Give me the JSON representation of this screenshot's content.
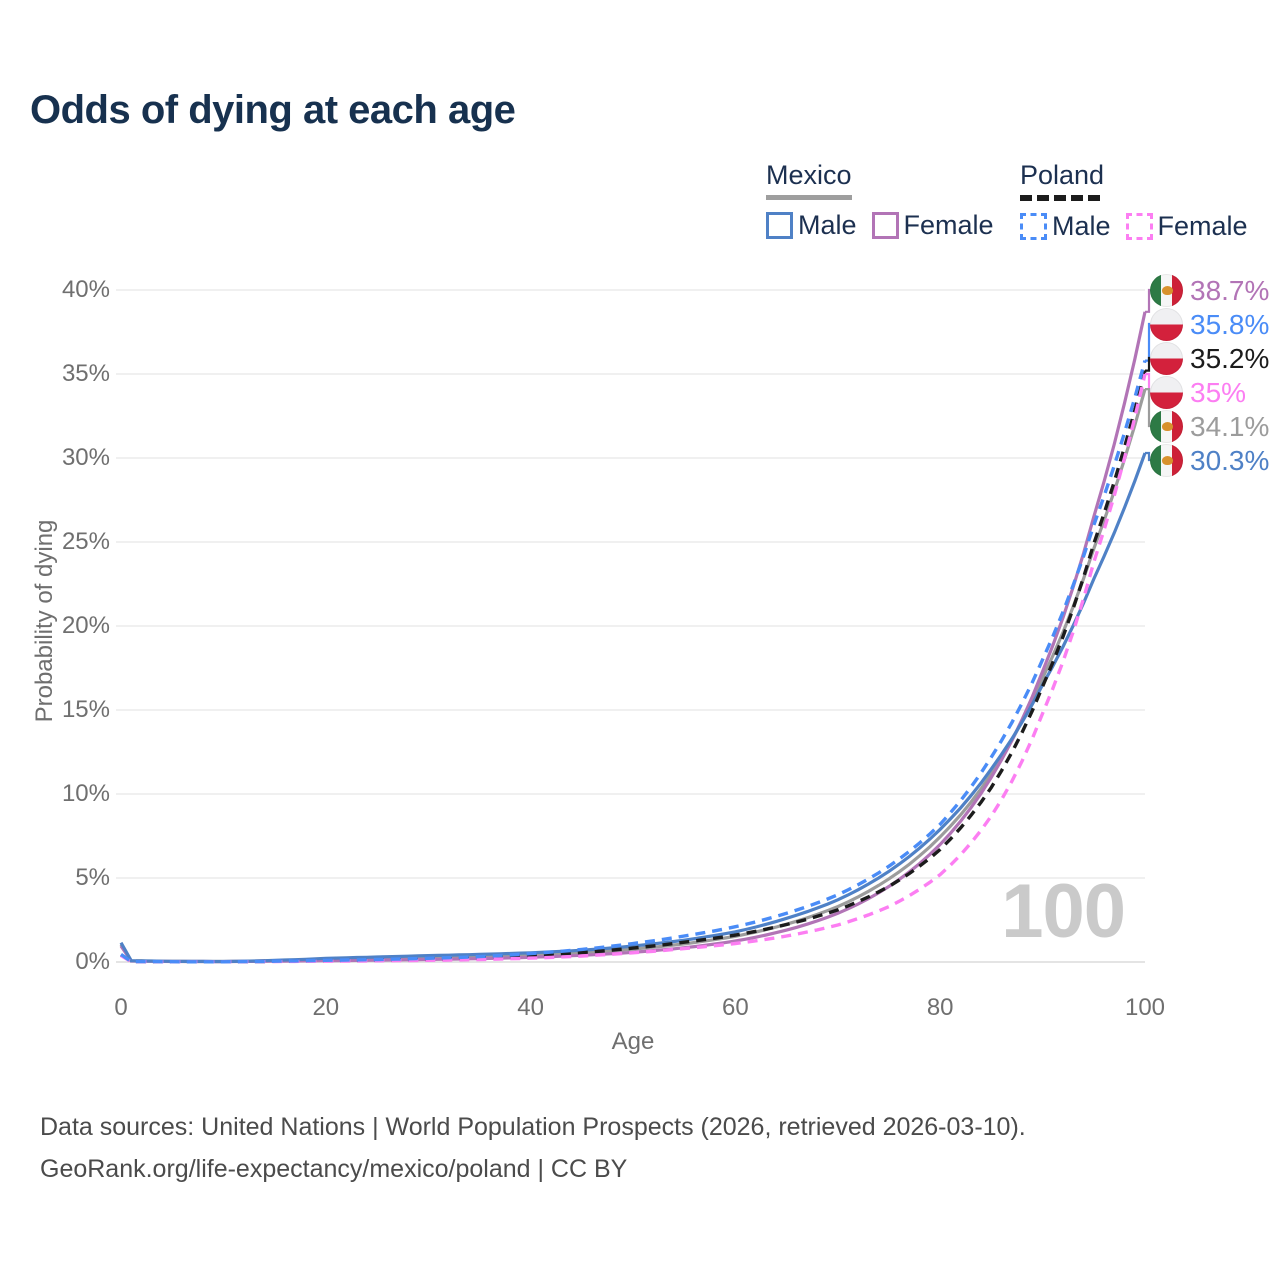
{
  "title": "Odds of dying at each age",
  "watermark_age": "100",
  "legend": {
    "groups": [
      {
        "title": "Mexico",
        "line_style": "solid",
        "underline_color": "#9e9e9e",
        "items": [
          {
            "label": "Male",
            "color": "#4f81c6"
          },
          {
            "label": "Female",
            "color": "#b274b6"
          }
        ]
      },
      {
        "title": "Poland",
        "line_style": "dashed",
        "underline_color": "#1c1c1c",
        "items": [
          {
            "label": "Male",
            "color": "#4a8cf7"
          },
          {
            "label": "Female",
            "color": "#fc7ef2"
          }
        ]
      }
    ]
  },
  "footer": {
    "line1": "Data sources: United Nations | World Population Prospects (2026, retrieved 2026-03-10).",
    "line2": "GeoRank.org/life-expectancy/mexico/poland | CC BY"
  },
  "chart_data": {
    "type": "line",
    "title": "Odds of dying at each age",
    "xlabel": "Age",
    "ylabel": "Probability of dying",
    "unit": "%",
    "xlim": [
      0,
      100
    ],
    "ylim": [
      0,
      40
    ],
    "grid": "horizontal",
    "legend_position": "top-right",
    "x_ticks": {
      "values": [
        0,
        20,
        40,
        60,
        80,
        100
      ],
      "labels": [
        "0",
        "20",
        "40",
        "60",
        "80",
        "100"
      ]
    },
    "y_ticks": {
      "values": [
        0,
        5,
        10,
        15,
        20,
        25,
        30,
        35,
        40
      ],
      "labels": [
        "0%",
        "5%",
        "10%",
        "15%",
        "20%",
        "25%",
        "30%",
        "35%",
        "40%"
      ]
    },
    "hovered_age": 100,
    "ages": [
      0,
      1,
      5,
      10,
      15,
      20,
      25,
      30,
      35,
      40,
      45,
      50,
      55,
      60,
      65,
      70,
      75,
      80,
      85,
      90,
      95,
      100
    ],
    "series": [
      {
        "id": "mexico-both",
        "name": "Mexico (both sexes)",
        "country": "Mexico",
        "flag": "mexico",
        "color": "#9c9c9c",
        "dashed": false,
        "end_value": 34.1,
        "end_label": "34.1%",
        "values": [
          1.05,
          0.07,
          0.035,
          0.028,
          0.08,
          0.15,
          0.21,
          0.27,
          0.33,
          0.42,
          0.55,
          0.77,
          1.08,
          1.53,
          2.25,
          3.3,
          4.95,
          7.45,
          11.2,
          16.9,
          24.6,
          34.1
        ]
      },
      {
        "id": "mexico-female",
        "name": "Mexico Female",
        "country": "Mexico",
        "flag": "mexico",
        "color": "#b274b6",
        "dashed": false,
        "end_value": 38.7,
        "end_label": "38.7%",
        "values": [
          0.95,
          0.06,
          0.03,
          0.025,
          0.05,
          0.08,
          0.11,
          0.15,
          0.2,
          0.28,
          0.4,
          0.58,
          0.85,
          1.25,
          1.9,
          2.9,
          4.5,
          7.0,
          11.0,
          17.3,
          26.5,
          38.7
        ]
      },
      {
        "id": "mexico-male",
        "name": "Mexico Male",
        "country": "Mexico",
        "flag": "mexico",
        "color": "#4f81c6",
        "dashed": false,
        "end_value": 30.3,
        "end_label": "30.3%",
        "values": [
          1.15,
          0.08,
          0.04,
          0.03,
          0.1,
          0.22,
          0.3,
          0.38,
          0.45,
          0.55,
          0.7,
          0.95,
          1.3,
          1.8,
          2.6,
          3.7,
          5.4,
          7.9,
          11.5,
          16.5,
          22.8,
          30.3
        ]
      },
      {
        "id": "poland-both",
        "name": "Poland (both sexes)",
        "country": "Poland",
        "flag": "poland",
        "color": "#1c1c1c",
        "dashed": true,
        "end_value": 35.2,
        "end_label": "35.2%",
        "values": [
          0.42,
          0.025,
          0.014,
          0.011,
          0.04,
          0.08,
          0.11,
          0.16,
          0.24,
          0.37,
          0.56,
          0.83,
          1.18,
          1.6,
          2.23,
          3.1,
          4.5,
          6.7,
          10.4,
          16.4,
          24.9,
          35.2
        ]
      },
      {
        "id": "poland-female",
        "name": "Poland Female",
        "country": "Poland",
        "flag": "poland",
        "color": "#fc7ef2",
        "dashed": true,
        "end_value": 35.0,
        "end_label": "35%",
        "values": [
          0.38,
          0.02,
          0.012,
          0.01,
          0.03,
          0.05,
          0.07,
          0.1,
          0.15,
          0.23,
          0.36,
          0.55,
          0.8,
          1.1,
          1.55,
          2.2,
          3.3,
          5.2,
          8.7,
          14.8,
          23.8,
          35.0
        ]
      },
      {
        "id": "poland-male",
        "name": "Poland Male",
        "country": "Poland",
        "flag": "poland",
        "color": "#4a8cf7",
        "dashed": true,
        "end_value": 35.8,
        "end_label": "35.8%",
        "values": [
          0.45,
          0.03,
          0.015,
          0.012,
          0.05,
          0.1,
          0.15,
          0.22,
          0.32,
          0.5,
          0.75,
          1.1,
          1.55,
          2.1,
          2.9,
          4.0,
          5.7,
          8.2,
          12.2,
          18.0,
          26.0,
          35.8
        ]
      }
    ]
  }
}
